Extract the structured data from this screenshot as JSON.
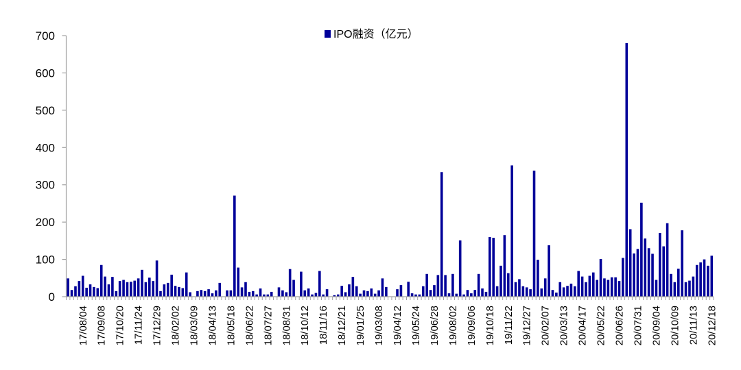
{
  "chart_data": {
    "type": "bar",
    "title": "",
    "xlabel": "",
    "ylabel": "",
    "ylim": [
      0,
      700
    ],
    "yticks": [
      0,
      100,
      200,
      300,
      400,
      500,
      600,
      700
    ],
    "grid": false,
    "legend": {
      "position": "top-center",
      "entries": [
        "IPO融资（亿元）"
      ]
    },
    "bar_color": "#000099",
    "categories": [
      "",
      "",
      "",
      "",
      "17/08/04",
      "",
      "",
      "",
      "",
      "17/09/08",
      "",
      "",
      "",
      "",
      "17/10/20",
      "",
      "",
      "",
      "",
      "17/11/24",
      "",
      "",
      "",
      "",
      "17/12/29",
      "",
      "",
      "",
      "",
      "18/02/02",
      "",
      "",
      "",
      "",
      "18/03/09",
      "",
      "",
      "",
      "",
      "18/04/13",
      "",
      "",
      "",
      "",
      "18/05/18",
      "",
      "",
      "",
      "",
      "18/06/22",
      "",
      "",
      "",
      "",
      "18/07/27",
      "",
      "",
      "",
      "",
      "18/08/31",
      "",
      "",
      "",
      "",
      "18/10/12",
      "",
      "",
      "",
      "",
      "18/11/16",
      "",
      "",
      "",
      "",
      "18/12/21",
      "",
      "",
      "",
      "",
      "19/01/25",
      "",
      "",
      "",
      "",
      "19/03/08",
      "",
      "",
      "",
      "",
      "19/04/12",
      "",
      "",
      "",
      "",
      "19/05/24",
      "",
      "",
      "",
      "",
      "19/06/28",
      "",
      "",
      "",
      "",
      "19/08/02",
      "",
      "",
      "",
      "",
      "19/09/06",
      "",
      "",
      "",
      "",
      "19/10/18",
      "",
      "",
      "",
      "",
      "19/11/22",
      "",
      "",
      "",
      "",
      "19/12/27",
      "",
      "",
      "",
      "",
      "20/02/07",
      "",
      "",
      "",
      "",
      "20/03/13",
      "",
      "",
      "",
      "",
      "20/04/17",
      "",
      "",
      "",
      "",
      "20/05/22",
      "",
      "",
      "",
      "",
      "20/06/26",
      "",
      "",
      "",
      "",
      "20/07/31",
      "",
      "",
      "",
      "",
      "20/09/04",
      "",
      "",
      "",
      "",
      "20/10/09",
      "",
      "",
      "",
      "",
      "20/11/13",
      "",
      "",
      "",
      "",
      "20/12/18"
    ],
    "series": [
      {
        "name": "IPO融资（亿元）",
        "values": [
          49,
          18,
          28,
          42,
          56,
          24,
          33,
          26,
          23,
          85,
          54,
          33,
          53,
          15,
          42,
          45,
          39,
          40,
          43,
          49,
          72,
          39,
          51,
          42,
          97,
          15,
          33,
          37,
          59,
          29,
          26,
          23,
          65,
          12,
          0,
          15,
          18,
          15,
          20,
          9,
          17,
          37,
          0,
          17,
          17,
          271,
          78,
          25,
          39,
          13,
          15,
          6,
          22,
          6,
          6,
          13,
          0,
          25,
          17,
          12,
          74,
          45,
          0,
          67,
          17,
          22,
          6,
          10,
          69,
          6,
          20,
          0,
          4,
          6,
          29,
          12,
          33,
          53,
          28,
          8,
          17,
          15,
          22,
          8,
          17,
          49,
          26,
          0,
          0,
          20,
          31,
          0,
          40,
          9,
          6,
          6,
          28,
          61,
          18,
          31,
          58,
          334,
          58,
          9,
          61,
          8,
          151,
          6,
          18,
          9,
          18,
          61,
          22,
          13,
          160,
          158,
          28,
          83,
          165,
          63,
          352,
          39,
          47,
          28,
          25,
          20,
          338,
          99,
          22,
          49,
          138,
          18,
          11,
          39,
          25,
          29,
          35,
          28,
          69,
          54,
          39,
          56,
          65,
          45,
          101,
          49,
          45,
          52,
          52,
          42,
          104,
          680,
          181,
          116,
          128,
          252,
          156,
          130,
          115,
          45,
          171,
          135,
          197,
          61,
          39,
          75,
          178,
          39,
          43,
          54,
          85,
          92,
          100,
          83,
          110
        ]
      }
    ]
  }
}
